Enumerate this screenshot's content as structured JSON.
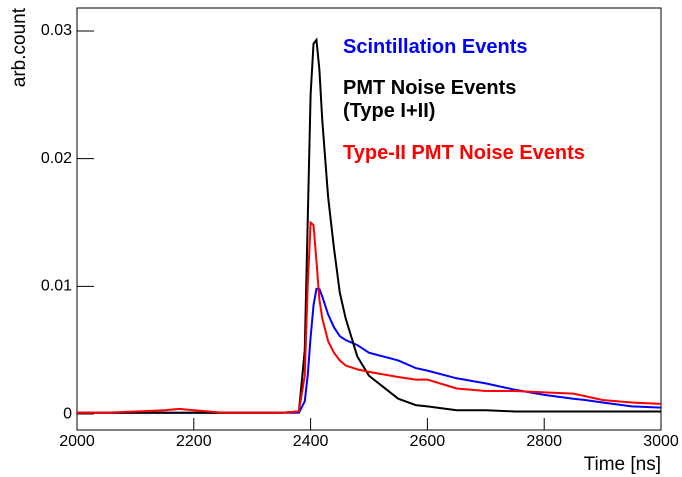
{
  "chart_data": {
    "type": "line",
    "xlabel": "Time [ns]",
    "ylabel": "arb.count",
    "x": [
      2000,
      2050,
      2100,
      2150,
      2175,
      2200,
      2250,
      2300,
      2350,
      2380,
      2390,
      2395,
      2400,
      2405,
      2410,
      2415,
      2420,
      2430,
      2440,
      2450,
      2460,
      2480,
      2500,
      2550,
      2580,
      2600,
      2650,
      2700,
      2750,
      2800,
      2850,
      2870,
      2900,
      2950,
      3000
    ],
    "series": [
      {
        "name": "Scintillation Events",
        "color": "#0000ff",
        "values": [
          0.0001,
          0.0001,
          0.0001,
          0.0001,
          0.0001,
          0.0001,
          0.0001,
          0.0001,
          0.0001,
          0.0001,
          0.001,
          0.003,
          0.006,
          0.0085,
          0.0098,
          0.0098,
          0.0092,
          0.0078,
          0.0068,
          0.0061,
          0.0058,
          0.0054,
          0.0048,
          0.0042,
          0.0036,
          0.0034,
          0.0028,
          0.0024,
          0.0019,
          0.0015,
          0.0012,
          0.0011,
          0.0009,
          0.0006,
          0.0005
        ]
      },
      {
        "name": "PMT Noise Events (Type I+II)",
        "color": "#000000",
        "values": [
          0.0001,
          0.0001,
          0.0001,
          0.0001,
          0.0001,
          0.0001,
          0.0001,
          0.0001,
          0.0001,
          0.0002,
          0.005,
          0.015,
          0.025,
          0.029,
          0.0293,
          0.027,
          0.023,
          0.017,
          0.013,
          0.0095,
          0.0075,
          0.0045,
          0.003,
          0.0012,
          0.0007,
          0.0006,
          0.0003,
          0.0003,
          0.0002,
          0.0002,
          0.0002,
          0.0002,
          0.0002,
          0.0002,
          0.0002
        ]
      },
      {
        "name": "Type-II PMT Noise Events",
        "color": "#ff0000",
        "values": [
          0.0001,
          0.0001,
          0.0002,
          0.0003,
          0.0004,
          0.0003,
          0.0001,
          0.0001,
          0.0001,
          0.0002,
          0.003,
          0.01,
          0.015,
          0.0148,
          0.012,
          0.009,
          0.0075,
          0.0057,
          0.0048,
          0.0042,
          0.0038,
          0.0035,
          0.0033,
          0.0029,
          0.0027,
          0.0027,
          0.002,
          0.0018,
          0.0018,
          0.0017,
          0.0016,
          0.0014,
          0.0011,
          0.0009,
          0.0008
        ]
      }
    ],
    "xlim": [
      2000,
      3000
    ],
    "xticks": [
      2000,
      2200,
      2400,
      2600,
      2800,
      3000
    ],
    "ylim": [
      -0.00125,
      0.0318
    ],
    "yticks": [
      0,
      0.01,
      0.02,
      0.03
    ]
  }
}
